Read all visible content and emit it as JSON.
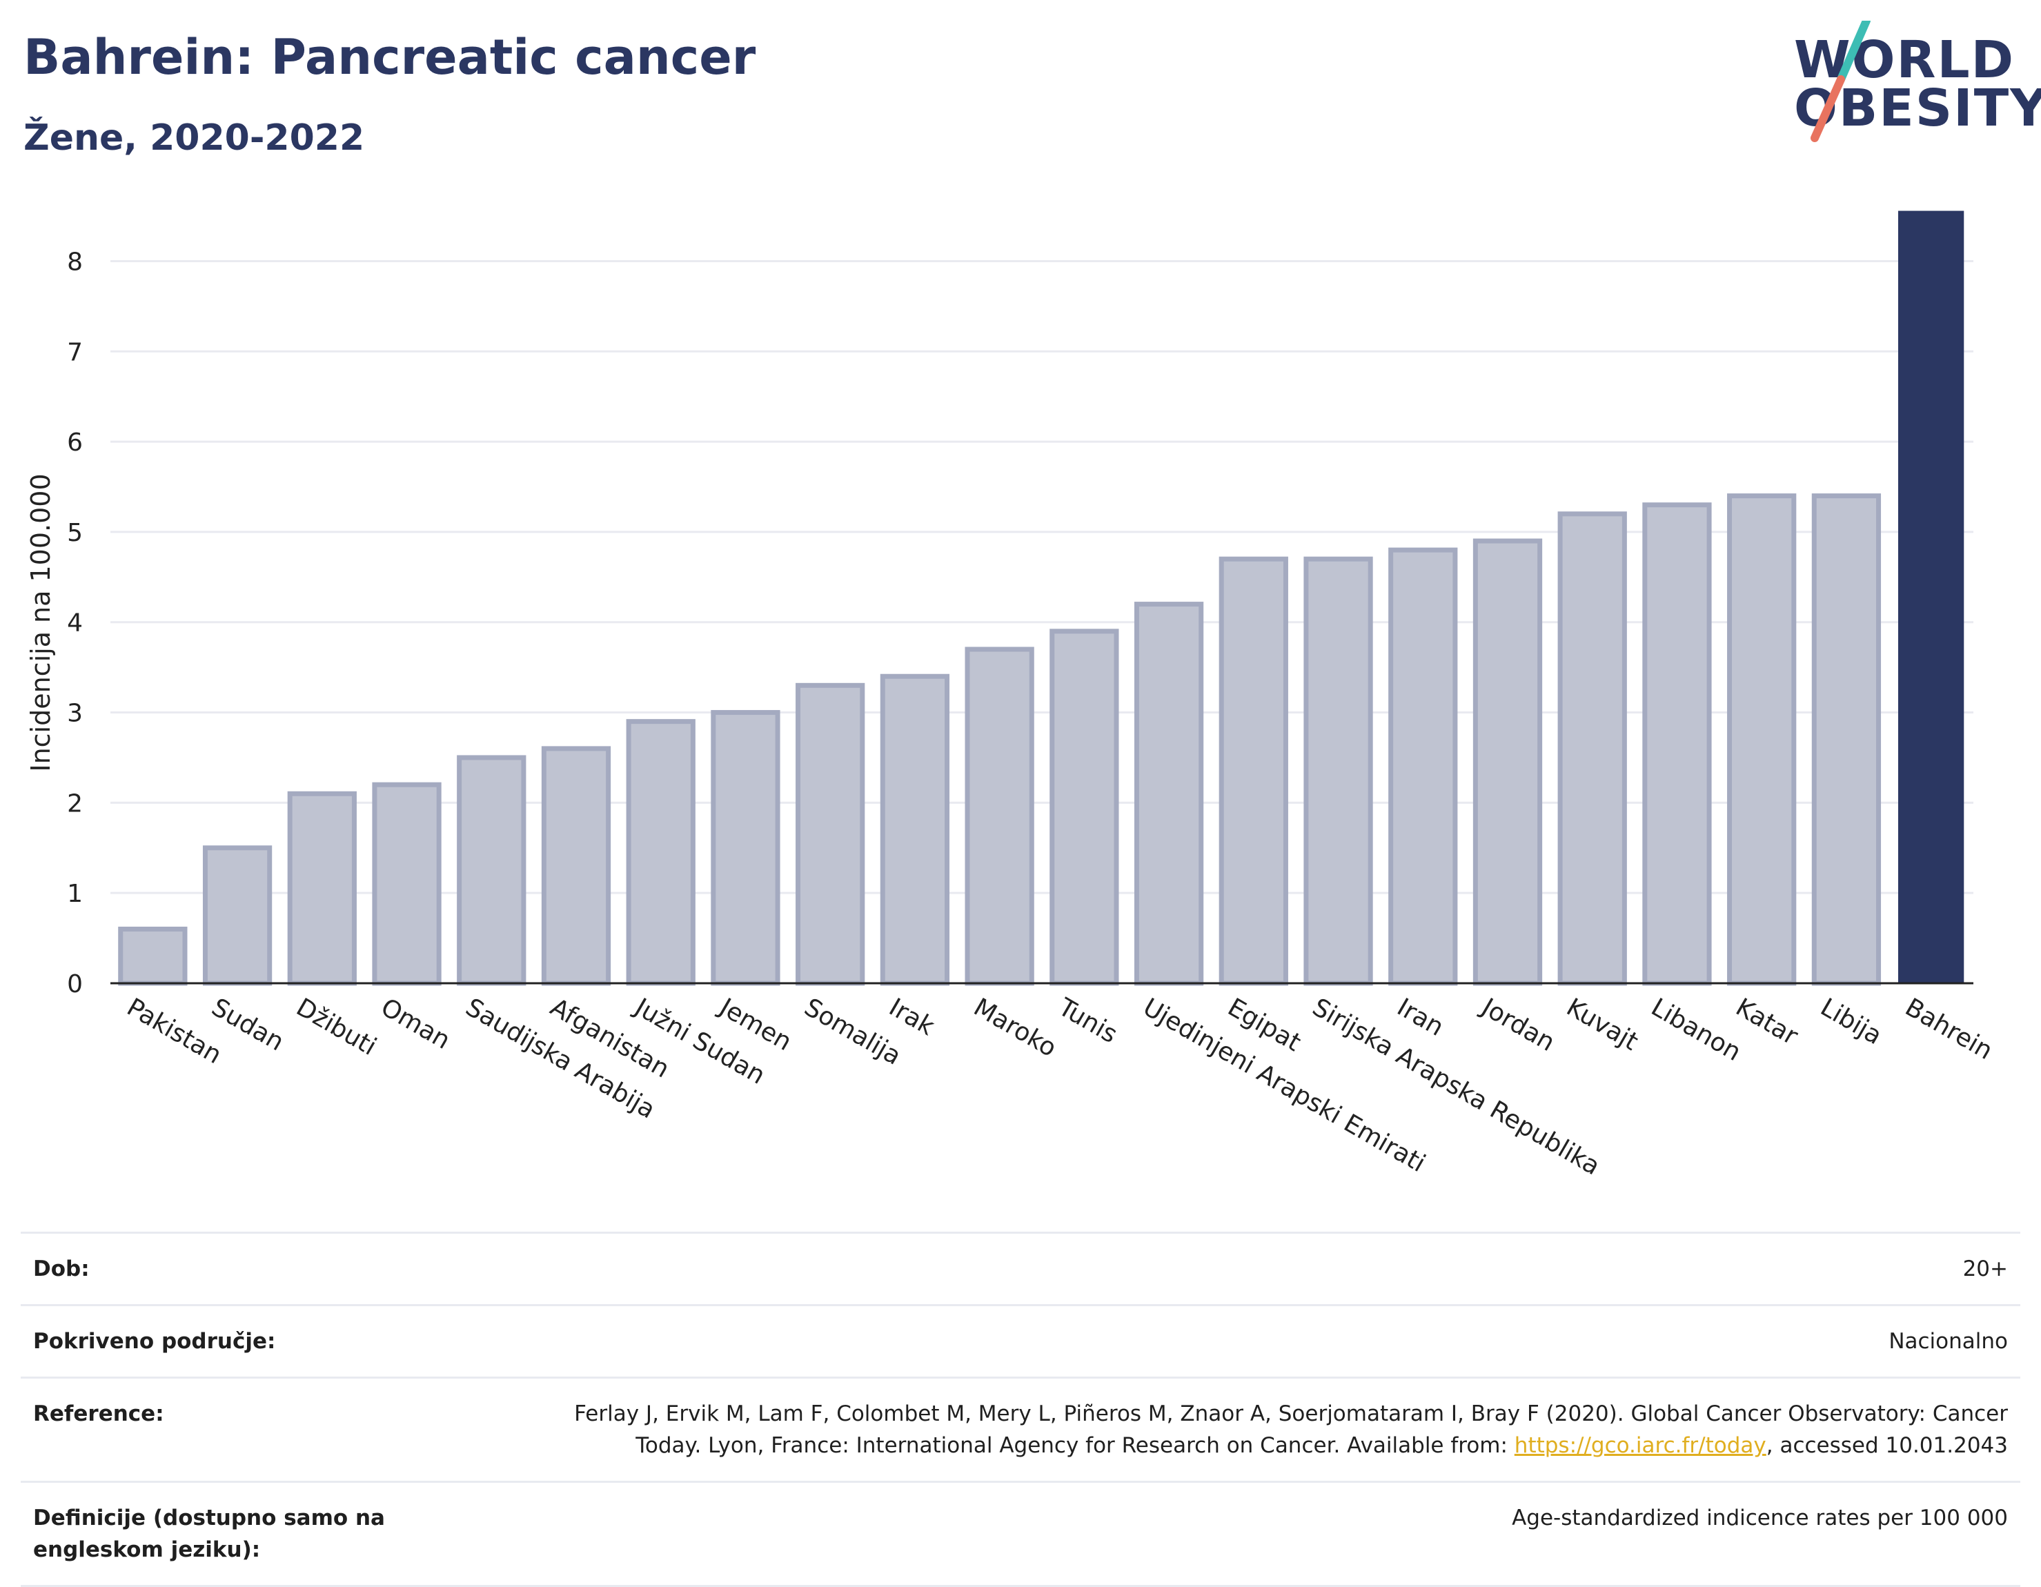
{
  "header": {
    "title": "Bahrein: Pancreatic cancer",
    "subtitle": "Žene, 2020-2022"
  },
  "logo": {
    "line1": "WORLD",
    "line2": "OBESITY",
    "slash_colors": [
      "#3dbdb4",
      "#e8735f"
    ]
  },
  "chart_data": {
    "type": "bar",
    "ylabel": "Incidencija na 100.000",
    "xlabel": "",
    "ylim": [
      0,
      8.6
    ],
    "yticks": [
      0,
      1,
      2,
      3,
      4,
      5,
      6,
      7,
      8
    ],
    "grid": true,
    "categories": [
      "Pakistan",
      "Sudan",
      "Džibuti",
      "Oman",
      "Saudijska Arabija",
      "Afganistan",
      "Južni Sudan",
      "Jemen",
      "Somalija",
      "Irak",
      "Maroko",
      "Tunis",
      "Ujedinjeni Arapski Emirati",
      "Egipat",
      "Sirijska Arapska Republika",
      "Iran",
      "Jordan",
      "Kuvajt",
      "Libanon",
      "Katar",
      "Libija",
      "Bahrein"
    ],
    "values": [
      0.6,
      1.5,
      2.1,
      2.2,
      2.5,
      2.6,
      2.9,
      3.0,
      3.3,
      3.4,
      3.7,
      3.9,
      4.2,
      4.7,
      4.7,
      4.8,
      4.9,
      5.2,
      5.3,
      5.4,
      5.4,
      8.55
    ],
    "highlight": "Bahrein",
    "colors": {
      "default_fill": "#bfc3d1",
      "default_stroke": "#a4aac0",
      "highlight_fill": "#2b3762"
    }
  },
  "meta": [
    {
      "label": "Dob:",
      "value": "20+"
    },
    {
      "label": "Pokriveno područje:",
      "value": "Nacionalno"
    },
    {
      "label": "Reference:",
      "value_pre": "Ferlay J, Ervik M, Lam F, Colombet M, Mery L, Piñeros M, Znaor A, Soerjomataram I, Bray F (2020). Global Cancer Observatory: Cancer Today. Lyon, France: International Agency for Research on Cancer. Available from: ",
      "link": "https://gco.iarc.fr/today",
      "value_post": ", accessed 10.01.2043"
    },
    {
      "label": "Definicije (dostupno samo na engleskom jeziku):",
      "value": "Age-standardized indicence rates per 100 000"
    }
  ]
}
